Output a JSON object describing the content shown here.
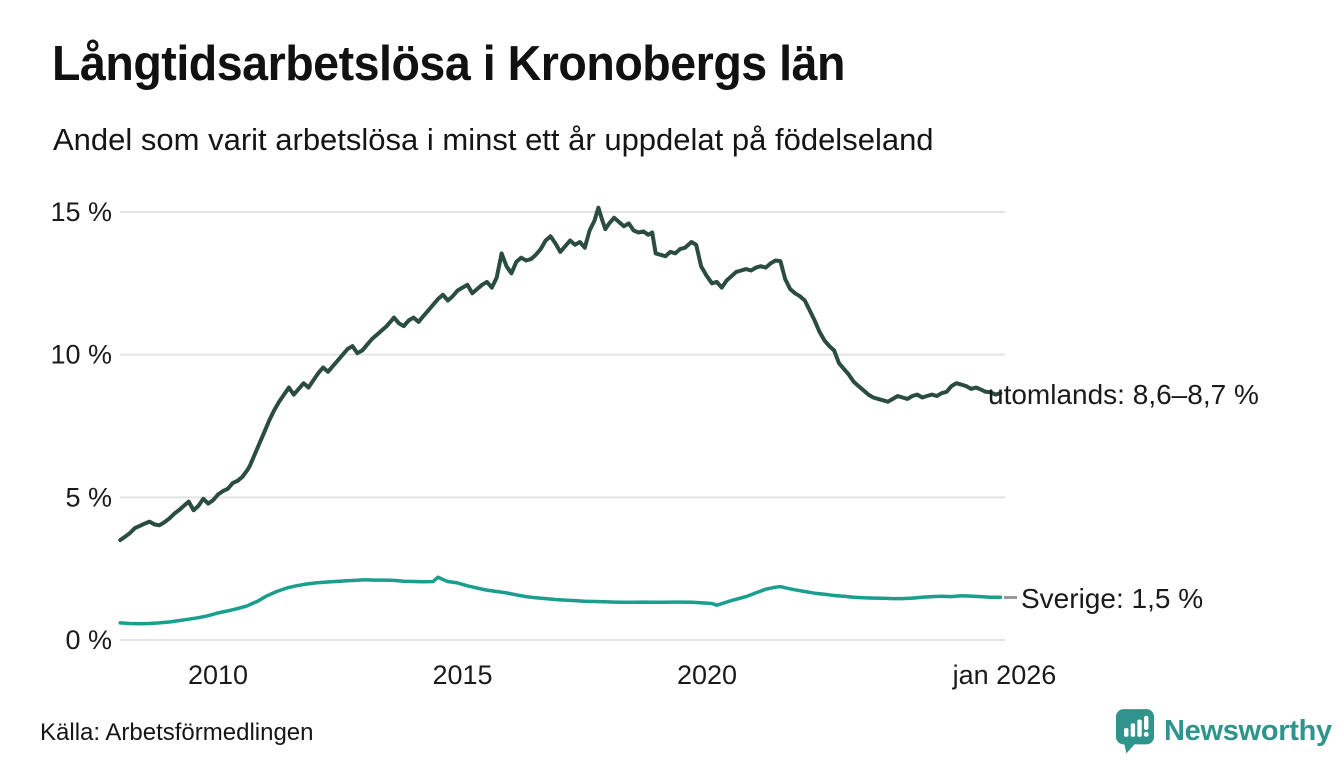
{
  "header": {
    "title": "Långtidsarbetslösa i Kronobergs län",
    "subtitle": "Andel som varit arbetslösa i minst ett år uppdelat på födelseland"
  },
  "footer": {
    "source": "Källa: Arbetsförmedlingen",
    "brand": "Newsworthy"
  },
  "colors": {
    "background": "#ffffff",
    "grid": "#e3e3e3",
    "text": "#121212",
    "accent_dark": "#2b4c41",
    "accent_teal": "#1a9e8e",
    "brand": "#2f948c",
    "leader_dash": "#9a9a9a"
  },
  "chart_data": {
    "type": "line",
    "title": "Långtidsarbetslösa i Kronobergs län",
    "subtitle": "Andel som varit arbetslösa i minst ett år uppdelat på födelseland",
    "unit": "%",
    "grid": true,
    "legend_position": "end-of-line labels at right",
    "source": "Källa: Arbetsförmedlingen",
    "x_axis": {
      "range": [
        2008,
        2026.083
      ],
      "ticks": [
        {
          "value": 2010,
          "label": "2010"
        },
        {
          "value": 2015,
          "label": "2015"
        },
        {
          "value": 2020,
          "label": "2020"
        },
        {
          "value": 2026.083,
          "label": "jan 2026"
        }
      ]
    },
    "y_axis": {
      "range": [
        0,
        15
      ],
      "ticks": [
        {
          "value": 0,
          "label": "0 %"
        },
        {
          "value": 5,
          "label": "5 %"
        },
        {
          "value": 10,
          "label": "10 %"
        },
        {
          "value": 15,
          "label": "15 %"
        }
      ]
    },
    "series": [
      {
        "name": "utomlands",
        "end_label": "utomlands: 8,6–8,7 %",
        "latest_value": "8,6–8,7 %",
        "color": "#2b4c41",
        "stroke_width": 4,
        "points": [
          [
            2008.0,
            3.5
          ],
          [
            2008.1,
            3.62
          ],
          [
            2008.2,
            3.75
          ],
          [
            2008.3,
            3.92
          ],
          [
            2008.4,
            4.0
          ],
          [
            2008.5,
            4.08
          ],
          [
            2008.6,
            4.15
          ],
          [
            2008.7,
            4.05
          ],
          [
            2008.8,
            4.02
          ],
          [
            2008.9,
            4.12
          ],
          [
            2009.0,
            4.25
          ],
          [
            2009.1,
            4.42
          ],
          [
            2009.2,
            4.55
          ],
          [
            2009.3,
            4.7
          ],
          [
            2009.4,
            4.85
          ],
          [
            2009.5,
            4.55
          ],
          [
            2009.6,
            4.7
          ],
          [
            2009.7,
            4.95
          ],
          [
            2009.8,
            4.78
          ],
          [
            2009.9,
            4.9
          ],
          [
            2010.0,
            5.1
          ],
          [
            2010.1,
            5.22
          ],
          [
            2010.2,
            5.3
          ],
          [
            2010.3,
            5.5
          ],
          [
            2010.4,
            5.58
          ],
          [
            2010.5,
            5.72
          ],
          [
            2010.6,
            5.95
          ],
          [
            2010.65,
            6.1
          ],
          [
            2010.75,
            6.5
          ],
          [
            2010.85,
            6.9
          ],
          [
            2010.95,
            7.3
          ],
          [
            2011.05,
            7.7
          ],
          [
            2011.15,
            8.05
          ],
          [
            2011.25,
            8.35
          ],
          [
            2011.35,
            8.6
          ],
          [
            2011.45,
            8.85
          ],
          [
            2011.55,
            8.6
          ],
          [
            2011.65,
            8.8
          ],
          [
            2011.75,
            9.0
          ],
          [
            2011.85,
            8.85
          ],
          [
            2011.95,
            9.1
          ],
          [
            2012.05,
            9.35
          ],
          [
            2012.15,
            9.55
          ],
          [
            2012.25,
            9.4
          ],
          [
            2012.35,
            9.6
          ],
          [
            2012.45,
            9.8
          ],
          [
            2012.55,
            10.0
          ],
          [
            2012.65,
            10.2
          ],
          [
            2012.75,
            10.3
          ],
          [
            2012.85,
            10.05
          ],
          [
            2012.95,
            10.15
          ],
          [
            2013.05,
            10.35
          ],
          [
            2013.15,
            10.55
          ],
          [
            2013.25,
            10.7
          ],
          [
            2013.35,
            10.85
          ],
          [
            2013.45,
            11.0
          ],
          [
            2013.55,
            11.2
          ],
          [
            2013.6,
            11.3
          ],
          [
            2013.7,
            11.1
          ],
          [
            2013.8,
            11.0
          ],
          [
            2013.9,
            11.2
          ],
          [
            2014.0,
            11.3
          ],
          [
            2014.1,
            11.15
          ],
          [
            2014.2,
            11.35
          ],
          [
            2014.3,
            11.55
          ],
          [
            2014.4,
            11.75
          ],
          [
            2014.5,
            11.95
          ],
          [
            2014.6,
            12.1
          ],
          [
            2014.7,
            11.9
          ],
          [
            2014.8,
            12.05
          ],
          [
            2014.9,
            12.25
          ],
          [
            2015.0,
            12.35
          ],
          [
            2015.1,
            12.45
          ],
          [
            2015.2,
            12.15
          ],
          [
            2015.3,
            12.3
          ],
          [
            2015.4,
            12.45
          ],
          [
            2015.5,
            12.55
          ],
          [
            2015.6,
            12.35
          ],
          [
            2015.7,
            12.7
          ],
          [
            2015.8,
            13.55
          ],
          [
            2015.9,
            13.1
          ],
          [
            2016.0,
            12.85
          ],
          [
            2016.1,
            13.25
          ],
          [
            2016.2,
            13.4
          ],
          [
            2016.3,
            13.3
          ],
          [
            2016.4,
            13.35
          ],
          [
            2016.5,
            13.5
          ],
          [
            2016.6,
            13.7
          ],
          [
            2016.7,
            14.0
          ],
          [
            2016.8,
            14.15
          ],
          [
            2016.9,
            13.9
          ],
          [
            2017.0,
            13.6
          ],
          [
            2017.1,
            13.8
          ],
          [
            2017.2,
            14.0
          ],
          [
            2017.3,
            13.85
          ],
          [
            2017.4,
            13.95
          ],
          [
            2017.5,
            13.75
          ],
          [
            2017.6,
            14.35
          ],
          [
            2017.7,
            14.7
          ],
          [
            2017.78,
            15.15
          ],
          [
            2017.85,
            14.75
          ],
          [
            2017.92,
            14.4
          ],
          [
            2018.0,
            14.6
          ],
          [
            2018.1,
            14.8
          ],
          [
            2018.2,
            14.65
          ],
          [
            2018.3,
            14.5
          ],
          [
            2018.4,
            14.6
          ],
          [
            2018.5,
            14.35
          ],
          [
            2018.6,
            14.28
          ],
          [
            2018.7,
            14.32
          ],
          [
            2018.8,
            14.2
          ],
          [
            2018.88,
            14.28
          ],
          [
            2018.95,
            13.55
          ],
          [
            2019.05,
            13.5
          ],
          [
            2019.15,
            13.45
          ],
          [
            2019.25,
            13.6
          ],
          [
            2019.35,
            13.55
          ],
          [
            2019.45,
            13.7
          ],
          [
            2019.55,
            13.75
          ],
          [
            2019.68,
            13.95
          ],
          [
            2019.78,
            13.85
          ],
          [
            2019.88,
            13.1
          ],
          [
            2019.98,
            12.8
          ],
          [
            2020.1,
            12.5
          ],
          [
            2020.2,
            12.55
          ],
          [
            2020.3,
            12.35
          ],
          [
            2020.4,
            12.6
          ],
          [
            2020.5,
            12.75
          ],
          [
            2020.6,
            12.9
          ],
          [
            2020.7,
            12.95
          ],
          [
            2020.8,
            13.0
          ],
          [
            2020.9,
            12.95
          ],
          [
            2021.0,
            13.05
          ],
          [
            2021.1,
            13.1
          ],
          [
            2021.2,
            13.05
          ],
          [
            2021.3,
            13.2
          ],
          [
            2021.4,
            13.3
          ],
          [
            2021.5,
            13.28
          ],
          [
            2021.6,
            12.65
          ],
          [
            2021.7,
            12.3
          ],
          [
            2021.8,
            12.15
          ],
          [
            2021.9,
            12.05
          ],
          [
            2022.0,
            11.9
          ],
          [
            2022.1,
            11.55
          ],
          [
            2022.2,
            11.2
          ],
          [
            2022.3,
            10.8
          ],
          [
            2022.4,
            10.5
          ],
          [
            2022.5,
            10.3
          ],
          [
            2022.6,
            10.15
          ],
          [
            2022.7,
            9.7
          ],
          [
            2022.8,
            9.5
          ],
          [
            2022.9,
            9.3
          ],
          [
            2023.0,
            9.05
          ],
          [
            2023.1,
            8.9
          ],
          [
            2023.2,
            8.75
          ],
          [
            2023.3,
            8.6
          ],
          [
            2023.4,
            8.5
          ],
          [
            2023.5,
            8.45
          ],
          [
            2023.6,
            8.4
          ],
          [
            2023.7,
            8.35
          ],
          [
            2023.8,
            8.45
          ],
          [
            2023.9,
            8.55
          ],
          [
            2024.0,
            8.5
          ],
          [
            2024.1,
            8.45
          ],
          [
            2024.2,
            8.55
          ],
          [
            2024.3,
            8.6
          ],
          [
            2024.4,
            8.5
          ],
          [
            2024.5,
            8.55
          ],
          [
            2024.6,
            8.6
          ],
          [
            2024.7,
            8.55
          ],
          [
            2024.8,
            8.65
          ],
          [
            2024.9,
            8.7
          ],
          [
            2025.0,
            8.9
          ],
          [
            2025.1,
            9.0
          ],
          [
            2025.2,
            8.95
          ],
          [
            2025.3,
            8.9
          ],
          [
            2025.4,
            8.8
          ],
          [
            2025.5,
            8.85
          ],
          [
            2025.6,
            8.78
          ],
          [
            2025.7,
            8.7
          ],
          [
            2025.8,
            8.68
          ],
          [
            2025.9,
            8.6
          ],
          [
            2026.0,
            8.65
          ]
        ]
      },
      {
        "name": "Sverige",
        "end_label": "Sverige: 1,5 %",
        "latest_value": "1,5 %",
        "color": "#1a9e8e",
        "stroke_width": 3.5,
        "points": [
          [
            2008.0,
            0.6
          ],
          [
            2008.2,
            0.58
          ],
          [
            2008.4,
            0.57
          ],
          [
            2008.6,
            0.58
          ],
          [
            2008.8,
            0.6
          ],
          [
            2009.0,
            0.63
          ],
          [
            2009.2,
            0.68
          ],
          [
            2009.4,
            0.73
          ],
          [
            2009.6,
            0.78
          ],
          [
            2009.8,
            0.85
          ],
          [
            2010.0,
            0.95
          ],
          [
            2010.2,
            1.02
          ],
          [
            2010.4,
            1.1
          ],
          [
            2010.6,
            1.2
          ],
          [
            2010.7,
            1.28
          ],
          [
            2010.8,
            1.35
          ],
          [
            2010.9,
            1.45
          ],
          [
            2011.0,
            1.55
          ],
          [
            2011.2,
            1.7
          ],
          [
            2011.4,
            1.82
          ],
          [
            2011.6,
            1.9
          ],
          [
            2011.8,
            1.96
          ],
          [
            2012.0,
            2.0
          ],
          [
            2012.2,
            2.03
          ],
          [
            2012.4,
            2.05
          ],
          [
            2012.6,
            2.07
          ],
          [
            2012.8,
            2.09
          ],
          [
            2013.0,
            2.11
          ],
          [
            2013.2,
            2.1
          ],
          [
            2013.4,
            2.1
          ],
          [
            2013.6,
            2.09
          ],
          [
            2013.8,
            2.06
          ],
          [
            2014.0,
            2.05
          ],
          [
            2014.2,
            2.04
          ],
          [
            2014.4,
            2.05
          ],
          [
            2014.5,
            2.2
          ],
          [
            2014.6,
            2.12
          ],
          [
            2014.7,
            2.05
          ],
          [
            2014.9,
            2.0
          ],
          [
            2015.1,
            1.9
          ],
          [
            2015.3,
            1.82
          ],
          [
            2015.5,
            1.75
          ],
          [
            2015.7,
            1.7
          ],
          [
            2015.9,
            1.65
          ],
          [
            2016.1,
            1.58
          ],
          [
            2016.3,
            1.52
          ],
          [
            2016.5,
            1.48
          ],
          [
            2016.7,
            1.45
          ],
          [
            2016.9,
            1.42
          ],
          [
            2017.1,
            1.4
          ],
          [
            2017.3,
            1.38
          ],
          [
            2017.5,
            1.36
          ],
          [
            2017.7,
            1.35
          ],
          [
            2017.9,
            1.34
          ],
          [
            2018.1,
            1.33
          ],
          [
            2018.3,
            1.32
          ],
          [
            2018.5,
            1.32
          ],
          [
            2018.7,
            1.33
          ],
          [
            2018.9,
            1.32
          ],
          [
            2019.1,
            1.32
          ],
          [
            2019.3,
            1.33
          ],
          [
            2019.5,
            1.33
          ],
          [
            2019.7,
            1.32
          ],
          [
            2019.9,
            1.3
          ],
          [
            2020.1,
            1.28
          ],
          [
            2020.2,
            1.22
          ],
          [
            2020.35,
            1.3
          ],
          [
            2020.5,
            1.38
          ],
          [
            2020.65,
            1.45
          ],
          [
            2020.8,
            1.52
          ],
          [
            2021.0,
            1.65
          ],
          [
            2021.2,
            1.78
          ],
          [
            2021.4,
            1.85
          ],
          [
            2021.5,
            1.87
          ],
          [
            2021.6,
            1.83
          ],
          [
            2021.8,
            1.76
          ],
          [
            2022.0,
            1.7
          ],
          [
            2022.2,
            1.64
          ],
          [
            2022.4,
            1.6
          ],
          [
            2022.6,
            1.56
          ],
          [
            2022.8,
            1.53
          ],
          [
            2023.0,
            1.5
          ],
          [
            2023.2,
            1.48
          ],
          [
            2023.4,
            1.47
          ],
          [
            2023.6,
            1.46
          ],
          [
            2023.8,
            1.45
          ],
          [
            2024.0,
            1.45
          ],
          [
            2024.2,
            1.47
          ],
          [
            2024.4,
            1.5
          ],
          [
            2024.6,
            1.52
          ],
          [
            2024.8,
            1.53
          ],
          [
            2025.0,
            1.52
          ],
          [
            2025.2,
            1.55
          ],
          [
            2025.4,
            1.54
          ],
          [
            2025.6,
            1.52
          ],
          [
            2025.8,
            1.5
          ],
          [
            2026.0,
            1.5
          ]
        ]
      }
    ]
  }
}
